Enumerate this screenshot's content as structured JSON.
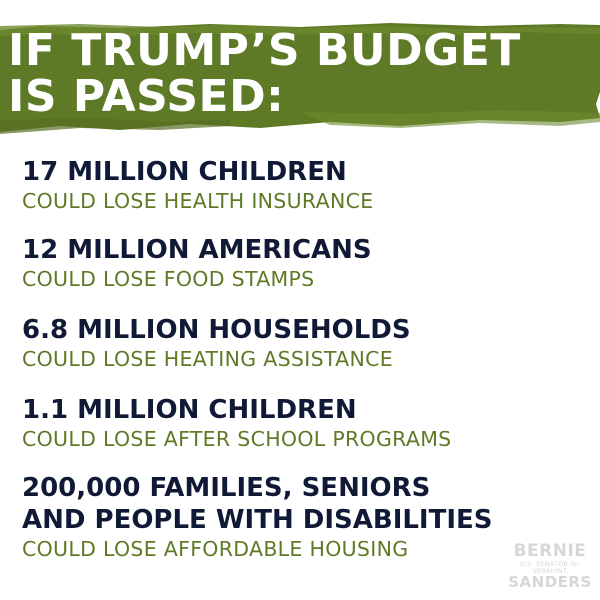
{
  "headline": {
    "line1": "IF TRUMP’S BUDGET",
    "line2": "IS PASSED:"
  },
  "stats": [
    {
      "big": "17 MILLION CHILDREN",
      "small": "COULD LOSE HEALTH INSURANCE"
    },
    {
      "big": "12 MILLION AMERICANS",
      "small": "COULD LOSE FOOD STAMPS"
    },
    {
      "big": "6.8 MILLION HOUSEHOLDS",
      "small": "COULD LOSE HEATING ASSISTANCE"
    },
    {
      "big": "1.1 MILLION CHILDREN",
      "small": "COULD LOSE AFTER SCHOOL PROGRAMS"
    },
    {
      "big": "200,000 FAMILIES, SENIORS",
      "big2": "AND PEOPLE WITH DISABILITIES",
      "small": "COULD LOSE AFFORDABLE HOUSING"
    }
  ],
  "logo": {
    "line1": "BERNIE",
    "line2": "U.S. SENATOR for VERMONT",
    "line3": "SANDERS"
  },
  "colors": {
    "banner_green": "#5f7a26",
    "headline_text": "#ffffff",
    "stat_dark": "#101a36",
    "stat_green": "#5f7a26",
    "logo_gray": "#d7d7d7"
  }
}
